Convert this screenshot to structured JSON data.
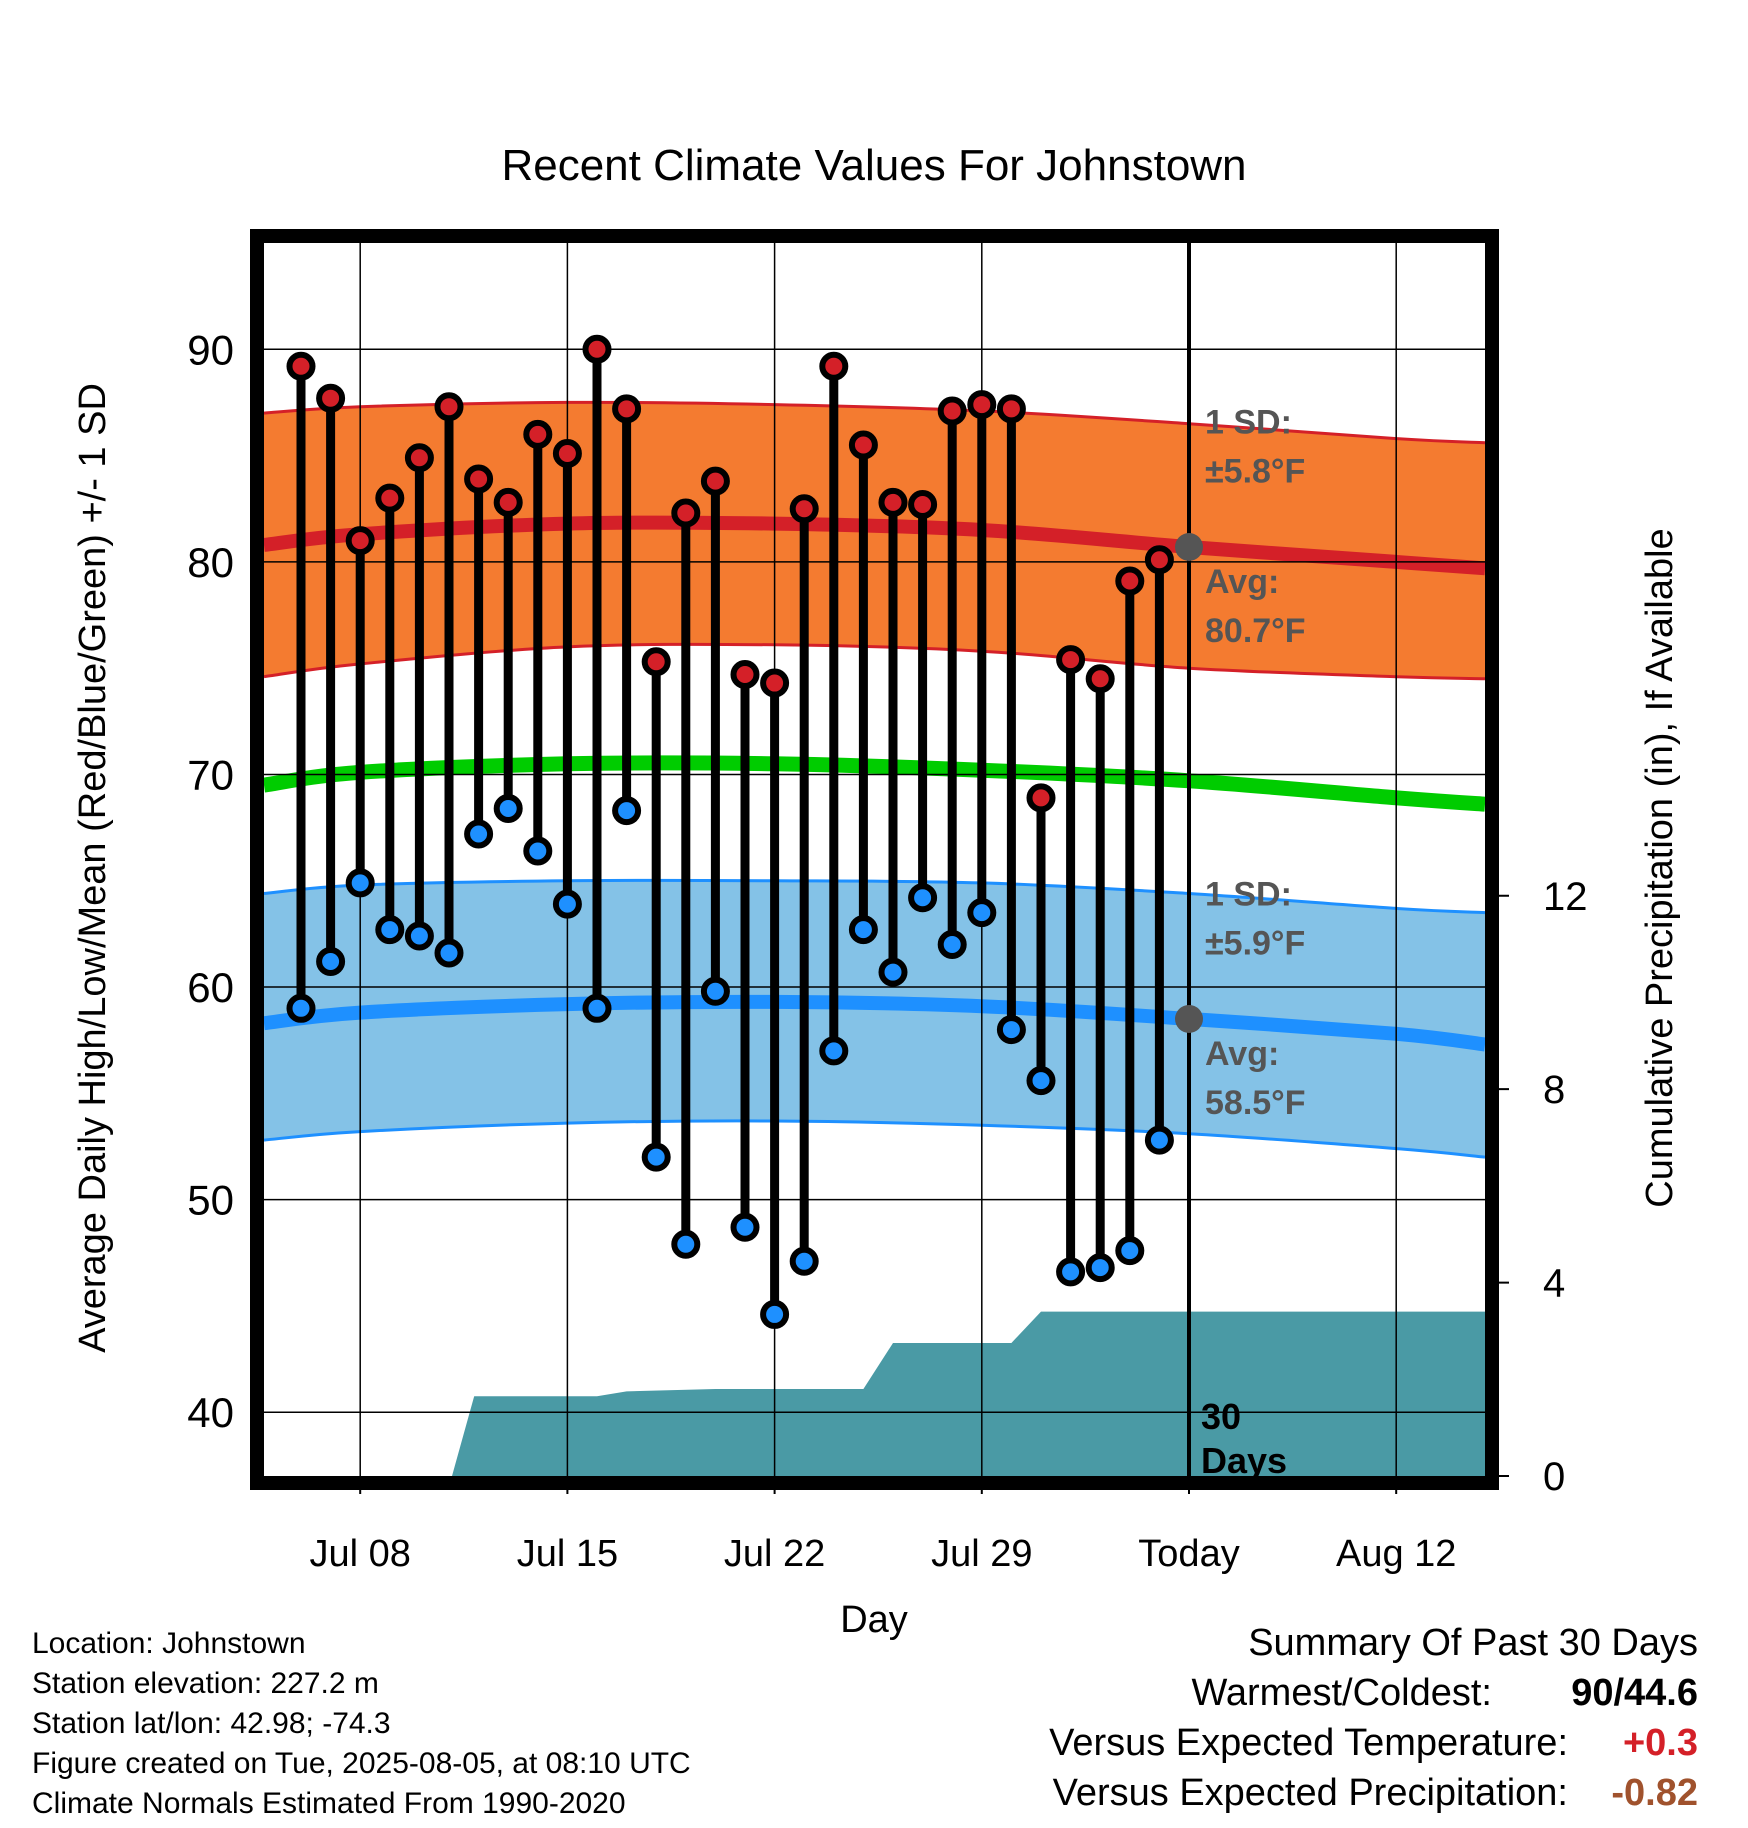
{
  "colors": {
    "high_band": "#f47b30",
    "high_band_edge": "#d42028",
    "high_avg": "#d42028",
    "low_band": "#84c2e7",
    "low_band_edge": "#1e90ff",
    "low_avg": "#1e90ff",
    "mean_line": "#00cc00",
    "precip_area": "#4a9aa5",
    "high_marker": "#d42028",
    "low_marker": "#1e90ff",
    "annotation": "#555555",
    "positive_anomaly": "#d42028",
    "negative_anomaly": "#a0522d"
  },
  "chart_data": {
    "type": "line",
    "title": "Recent Climate Values For Johnstown",
    "xlabel": "Day",
    "ylabel": "Average Daily High/Low/Mean (Red/Blue/Green) +/- 1 SD",
    "y2label": "Cumulative Precipitation (in), If Available",
    "x_tick_labels": [
      {
        "day": 8,
        "label": "Jul 08"
      },
      {
        "day": 15,
        "label": "Jul 15"
      },
      {
        "day": 22,
        "label": "Jul 22"
      },
      {
        "day": 29,
        "label": "Jul 29"
      },
      {
        "day": 36,
        "label": "Today"
      },
      {
        "day": 43,
        "label": "Aug 12"
      }
    ],
    "xlim": [
      4.75,
      46.0
    ],
    "ylim": [
      37,
      95
    ],
    "y_ticks": [
      40,
      50,
      60,
      70,
      80,
      90
    ],
    "y2lim": [
      0,
      25.5
    ],
    "y2_ticks": [
      0,
      4,
      8,
      12
    ],
    "grid": true,
    "today_day": 36,
    "today_label_lines": [
      "30",
      "Days"
    ],
    "observed": {
      "days": [
        6,
        7,
        8,
        9,
        10,
        11,
        12,
        13,
        14,
        15,
        16,
        17,
        18,
        19,
        20,
        21,
        22,
        23,
        24,
        25,
        26,
        27,
        28,
        29,
        30,
        31,
        32,
        33,
        34,
        35
      ],
      "high": [
        89.2,
        87.7,
        81.0,
        83.0,
        84.9,
        87.3,
        83.9,
        82.8,
        86.0,
        85.1,
        90.0,
        87.2,
        75.3,
        82.3,
        83.8,
        74.7,
        74.3,
        82.5,
        89.2,
        85.5,
        82.8,
        82.7,
        87.1,
        87.4,
        87.2,
        68.9,
        75.4,
        74.5,
        79.1,
        80.1
      ],
      "low": [
        59.0,
        61.2,
        64.9,
        62.7,
        62.4,
        61.6,
        67.2,
        68.4,
        66.4,
        63.9,
        59.0,
        68.3,
        52.0,
        47.9,
        59.8,
        48.7,
        44.6,
        47.1,
        57.0,
        62.7,
        60.7,
        64.2,
        62.0,
        63.5,
        58.0,
        55.6,
        46.6,
        46.8,
        47.6,
        52.8
      ]
    },
    "normals": {
      "days": [
        4.75,
        8,
        15,
        22,
        29,
        36,
        43,
        46
      ],
      "high_avg": [
        80.8,
        81.3,
        81.8,
        81.8,
        81.5,
        80.7,
        80.0,
        79.7
      ],
      "high_upper": [
        87.0,
        87.3,
        87.5,
        87.4,
        87.1,
        86.5,
        85.8,
        85.6
      ],
      "high_lower": [
        74.6,
        75.2,
        76.0,
        76.1,
        75.8,
        75.0,
        74.6,
        74.5
      ],
      "low_avg": [
        58.3,
        58.8,
        59.2,
        59.3,
        59.1,
        58.5,
        57.8,
        57.3
      ],
      "low_upper": [
        64.4,
        64.8,
        65.0,
        65.0,
        64.9,
        64.4,
        63.7,
        63.5
      ],
      "low_lower": [
        52.8,
        53.2,
        53.6,
        53.7,
        53.5,
        53.1,
        52.4,
        52.0
      ],
      "mean": [
        69.5,
        70.1,
        70.5,
        70.5,
        70.2,
        69.7,
        68.9,
        68.6
      ]
    },
    "precip_cumulative": {
      "days": [
        4.75,
        11.1,
        11.85,
        16.0,
        17.0,
        20.0,
        25.0,
        26.0,
        27.0,
        30.0,
        31.0,
        46.0
      ],
      "values": [
        0,
        0,
        1.65,
        1.65,
        1.75,
        1.8,
        1.8,
        2.75,
        2.75,
        2.75,
        3.4,
        3.4
      ]
    },
    "annotations": {
      "high_sd_label": "1 SD:",
      "high_sd_value": "±5.8°F",
      "high_avg_label": "Avg:",
      "high_avg_value": "80.7°F",
      "low_sd_label": "1 SD:",
      "low_sd_value": "±5.9°F",
      "low_avg_label": "Avg:",
      "low_avg_value": "58.5°F"
    }
  },
  "station_info": {
    "location": "Location: Johnstown",
    "elevation": "Station elevation: 227.2 m",
    "latlon": "Station lat/lon: 42.98; -74.3",
    "created": "Figure created on Tue, 2025-08-05, at 08:10 UTC",
    "normals": "Climate Normals Estimated From 1990-2020"
  },
  "summary": {
    "heading": "Summary Of Past 30 Days",
    "warmest_coldest_label": "Warmest/Coldest:",
    "warmest_coldest_value": "90/44.6",
    "temp_label": "Versus Expected Temperature:",
    "temp_value": "+0.3",
    "precip_label": "Versus Expected Precipitation:",
    "precip_value": "-0.82"
  }
}
